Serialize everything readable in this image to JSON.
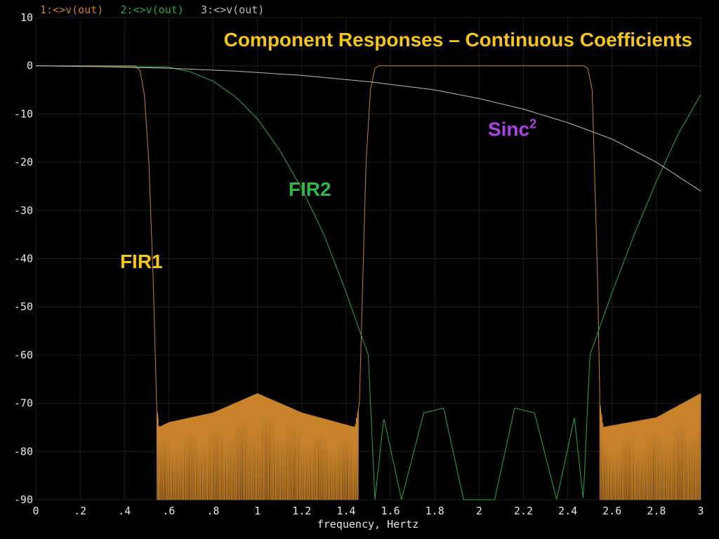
{
  "chart_data": {
    "type": "line",
    "title": "Component Responses – Continuous Coefficients",
    "xlabel": "frequency, Hertz",
    "ylabel": "",
    "xlim": [
      0,
      3
    ],
    "ylim": [
      -90,
      10
    ],
    "xticks": [
      {
        "value": 0,
        "label": "0"
      },
      {
        "value": 0.2,
        "label": ".2"
      },
      {
        "value": 0.4,
        "label": ".4"
      },
      {
        "value": 0.6,
        "label": ".6"
      },
      {
        "value": 0.8,
        "label": ".8"
      },
      {
        "value": 1.0,
        "label": "1"
      },
      {
        "value": 1.2,
        "label": "1.2"
      },
      {
        "value": 1.4,
        "label": "1.4"
      },
      {
        "value": 1.6,
        "label": "1.6"
      },
      {
        "value": 1.8,
        "label": "1.8"
      },
      {
        "value": 2.0,
        "label": "2"
      },
      {
        "value": 2.2,
        "label": "2.2"
      },
      {
        "value": 2.4,
        "label": "2.4"
      },
      {
        "value": 2.6,
        "label": "2.6"
      },
      {
        "value": 2.8,
        "label": "2.8"
      },
      {
        "value": 3.0,
        "label": "3"
      }
    ],
    "yticks": [
      {
        "value": 10,
        "label": "10"
      },
      {
        "value": 0,
        "label": "0"
      },
      {
        "value": -10,
        "label": "-10"
      },
      {
        "value": -20,
        "label": "-20"
      },
      {
        "value": -30,
        "label": "-30"
      },
      {
        "value": -40,
        "label": "-40"
      },
      {
        "value": -50,
        "label": "-50"
      },
      {
        "value": -60,
        "label": "-60"
      },
      {
        "value": -70,
        "label": "-70"
      },
      {
        "value": -80,
        "label": "-80"
      },
      {
        "value": -90,
        "label": "-90"
      }
    ],
    "grid": true,
    "legend": [
      {
        "label": "1:<>v(out)",
        "color": "#c8822a"
      },
      {
        "label": "2:<>v(out)",
        "color": "#2aa84a"
      },
      {
        "label": "3:<>v(out)",
        "color": "#bbbbbb"
      }
    ],
    "annotations": [
      {
        "text": "FIR1",
        "x": 0.38,
        "y": -42,
        "color": "#f5c518"
      },
      {
        "text": "FIR2",
        "x": 1.14,
        "y": -27,
        "color": "#2fb84a"
      },
      {
        "text": "Sinc",
        "sup": "2",
        "x": 2.04,
        "y": -14.5,
        "color": "#b040e8"
      }
    ],
    "series": [
      {
        "key": "fir1",
        "color": "#c8822a",
        "x": [
          0,
          0.45,
          0.47,
          0.49,
          0.51,
          0.53,
          0.545,
          0.555,
          0.6,
          0.8,
          1.0,
          1.2,
          1.44,
          1.46,
          1.475,
          1.49,
          1.51,
          1.53,
          1.55,
          2.47,
          2.49,
          2.51,
          2.52,
          2.535,
          2.545,
          2.56,
          2.8,
          3.0
        ],
        "y": [
          0,
          0,
          -1,
          -6,
          -20,
          -45,
          -70,
          -75,
          -74,
          -72,
          -68,
          -72,
          -75,
          -70,
          -45,
          -20,
          -5,
          -0.5,
          0,
          0,
          -0.5,
          -5,
          -20,
          -45,
          -70,
          -75,
          -73,
          -68
        ],
        "ripple": [
          {
            "from": 0.545,
            "to": 1.455
          },
          {
            "from": 2.545,
            "to": 3.0
          }
        ]
      },
      {
        "key": "fir2",
        "color": "#2aa84a",
        "x": [
          0,
          0.6,
          0.7,
          0.8,
          0.9,
          1.0,
          1.1,
          1.2,
          1.3,
          1.4,
          1.5,
          1.53,
          1.57,
          1.65,
          1.75,
          1.84,
          1.93,
          2.0,
          2.07,
          2.16,
          2.25,
          2.35,
          2.43,
          2.47,
          2.5,
          2.6,
          2.7,
          2.8,
          2.9,
          3.0
        ],
        "y": [
          0,
          -0.3,
          -1.3,
          -3.2,
          -6.4,
          -11,
          -17.5,
          -25.5,
          -35,
          -47,
          -60,
          -90,
          -73,
          -90,
          -72,
          -71,
          -90,
          -90,
          -90,
          -71,
          -72,
          -90,
          -73,
          -90,
          -60,
          -47,
          -35,
          -24,
          -14,
          -6
        ]
      },
      {
        "key": "sinc2",
        "color": "#bbbbbb",
        "x": [
          0,
          0.3,
          0.6,
          0.9,
          1.2,
          1.5,
          1.8,
          2.0,
          2.2,
          2.4,
          2.6,
          2.8,
          3.0
        ],
        "y": [
          0,
          -0.2,
          -0.5,
          -1.1,
          -2.0,
          -3.3,
          -5.0,
          -6.8,
          -9.0,
          -11.8,
          -15.2,
          -20.0,
          -26.0
        ]
      }
    ]
  }
}
